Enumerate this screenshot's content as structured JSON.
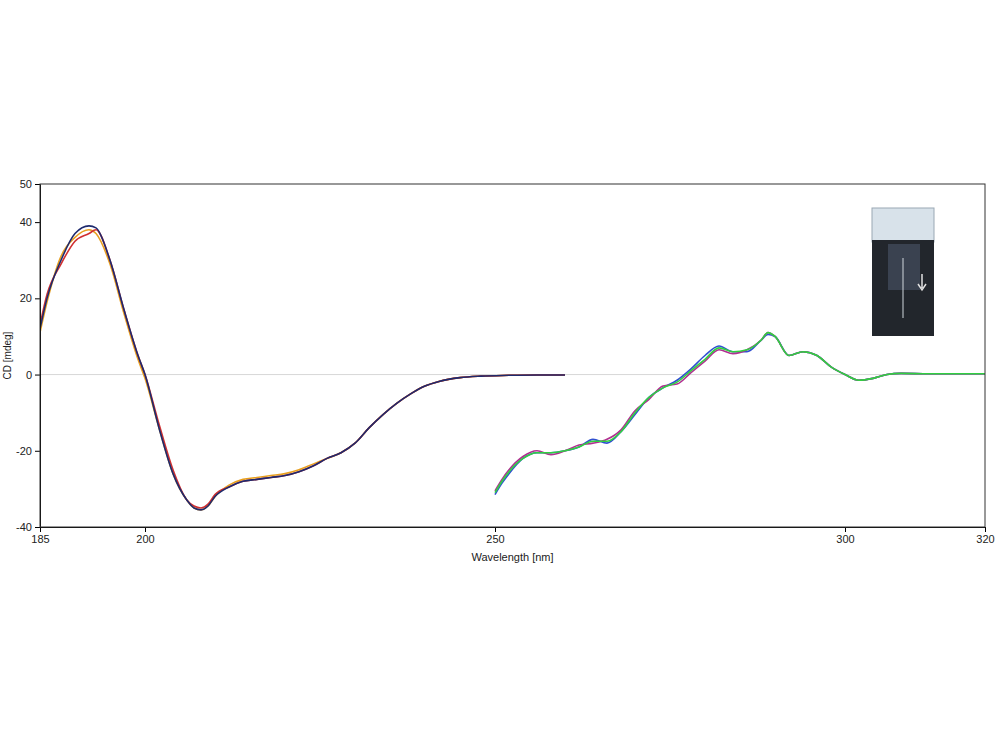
{
  "chart_data": {
    "type": "line",
    "x_label": "Wavelength [nm]",
    "y_label": "CD [mdeg]",
    "xlim": [
      185,
      320
    ],
    "ylim": [
      -40,
      50
    ],
    "xticks": [
      185,
      200,
      250,
      300,
      320
    ],
    "yticks": [
      -40,
      -20,
      0,
      20,
      40,
      50
    ],
    "grid": false,
    "series": [
      {
        "color": "#e8a020",
        "x": [
          185,
          186,
          188,
          190,
          192,
          193,
          195,
          197,
          199,
          200,
          202,
          204,
          206,
          207,
          208,
          209,
          210,
          212,
          214,
          216,
          218,
          220,
          222,
          224,
          226,
          228,
          230,
          232,
          234,
          236,
          238,
          240,
          242,
          245,
          248,
          252,
          256,
          260
        ],
        "values": [
          11,
          19,
          31,
          36,
          38,
          37,
          29,
          16,
          4,
          -1,
          -14,
          -26,
          -33,
          -35,
          -35.5,
          -34.5,
          -32,
          -29,
          -27.5,
          -27,
          -26.5,
          -26,
          -25,
          -23.5,
          -22,
          -20.5,
          -18,
          -14,
          -10.5,
          -7.5,
          -5,
          -3,
          -1.8,
          -0.8,
          -0.4,
          -0.2,
          -0.1,
          -0.1
        ]
      },
      {
        "color": "#d03030",
        "x": [
          185,
          186,
          188,
          190,
          192,
          193,
          195,
          197,
          199,
          200,
          202,
          204,
          206,
          207,
          208,
          209,
          210,
          212,
          214,
          216,
          218,
          220,
          222,
          224,
          226,
          228,
          230,
          232,
          234,
          236,
          238,
          240,
          242,
          245,
          248,
          252,
          256,
          260
        ],
        "values": [
          13,
          21,
          29,
          35,
          37,
          38,
          30,
          17,
          5,
          0,
          -13,
          -25,
          -33,
          -34.5,
          -35,
          -34,
          -31.5,
          -29.5,
          -28,
          -27.5,
          -27,
          -26.5,
          -25.5,
          -24,
          -22,
          -20.5,
          -18,
          -14,
          -10.5,
          -7.5,
          -5,
          -3,
          -1.8,
          -0.8,
          -0.4,
          -0.2,
          -0.1,
          -0.1
        ]
      },
      {
        "color": "#1e2a6e",
        "x": [
          185,
          186,
          188,
          190,
          192,
          193,
          195,
          197,
          199,
          200,
          202,
          204,
          206,
          207,
          208,
          209,
          210,
          212,
          214,
          216,
          218,
          220,
          222,
          224,
          226,
          228,
          230,
          232,
          234,
          236,
          238,
          240,
          242,
          245,
          248,
          252,
          256,
          260
        ],
        "values": [
          12,
          20,
          30,
          37,
          39,
          38.5,
          30,
          17,
          5,
          0,
          -14,
          -26,
          -33,
          -35,
          -35.5,
          -34.5,
          -32,
          -29.5,
          -28,
          -27.5,
          -27,
          -26.5,
          -25.5,
          -24,
          -22,
          -20.5,
          -18,
          -14,
          -10.5,
          -7.5,
          -5,
          -3,
          -1.8,
          -0.8,
          -0.4,
          -0.2,
          -0.1,
          -0.1
        ]
      },
      {
        "color": "#3050d0",
        "x": [
          250,
          251,
          252,
          254,
          256,
          258,
          260,
          262,
          264,
          266,
          268,
          270,
          272,
          274,
          276,
          278,
          280,
          282,
          284,
          286,
          288,
          289,
          290,
          292,
          294,
          296,
          298,
          300,
          302,
          304,
          306,
          308,
          312,
          316,
          320
        ],
        "values": [
          -31.5,
          -28.5,
          -26,
          -22,
          -20.5,
          -20.5,
          -20,
          -19,
          -17,
          -18,
          -15,
          -10.5,
          -6,
          -3.5,
          -1.5,
          1.5,
          5,
          7.5,
          6,
          6,
          9,
          10.5,
          10,
          5,
          6,
          5,
          2,
          0,
          -1.5,
          -1,
          0,
          0.3,
          0.2,
          0.2,
          0.2
        ]
      },
      {
        "color": "#b03090",
        "x": [
          250,
          251,
          252,
          254,
          256,
          258,
          260,
          262,
          264,
          266,
          268,
          270,
          272,
          274,
          276,
          278,
          280,
          282,
          284,
          286,
          288,
          289,
          290,
          292,
          294,
          296,
          298,
          300,
          302,
          304,
          306,
          308,
          312,
          316,
          320
        ],
        "values": [
          -30.5,
          -27.5,
          -25,
          -21.5,
          -20,
          -21,
          -20,
          -18.5,
          -18,
          -17,
          -14.5,
          -9.5,
          -6.5,
          -3,
          -2.5,
          0.5,
          3.5,
          6.5,
          5.5,
          6.5,
          9,
          11,
          10,
          5,
          6,
          5,
          2,
          0,
          -1.5,
          -1,
          0,
          0.3,
          0.2,
          0.2,
          0.2
        ]
      },
      {
        "color": "#30d040",
        "x": [
          250,
          251,
          252,
          254,
          256,
          258,
          260,
          262,
          264,
          266,
          268,
          270,
          272,
          274,
          276,
          278,
          280,
          282,
          284,
          286,
          288,
          289,
          290,
          292,
          294,
          296,
          298,
          300,
          302,
          304,
          306,
          308,
          312,
          316,
          320
        ],
        "values": [
          -31,
          -28,
          -25.5,
          -22,
          -20.5,
          -20.5,
          -20,
          -19,
          -17.5,
          -17.5,
          -15,
          -10,
          -6,
          -3.5,
          -2,
          1,
          4,
          7,
          6,
          6.5,
          9,
          11,
          10,
          5,
          6,
          5,
          2,
          0,
          -1.5,
          -1,
          0,
          0.3,
          0.2,
          0.2,
          0.2
        ]
      }
    ]
  }
}
